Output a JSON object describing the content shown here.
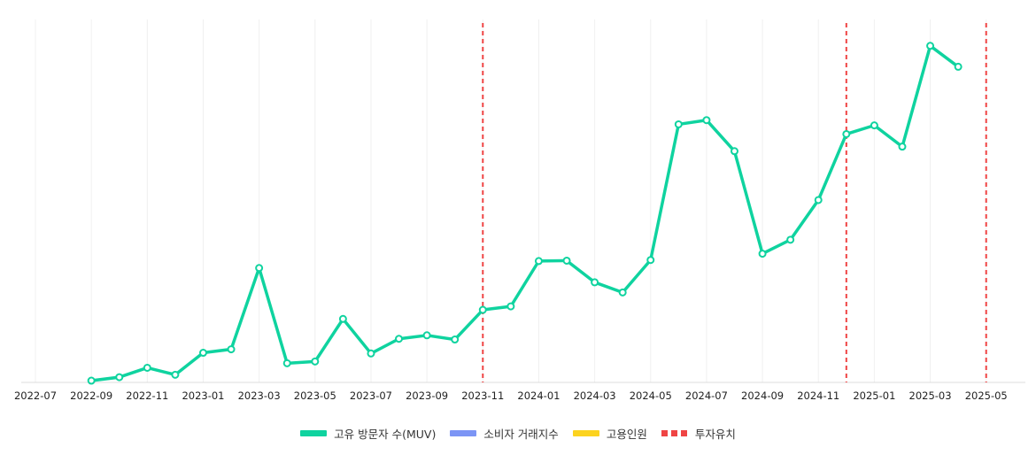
{
  "chart_data": {
    "type": "line",
    "x_ticks": [
      "2022-07",
      "2022-09",
      "2022-11",
      "2023-01",
      "2023-03",
      "2023-05",
      "2023-07",
      "2023-09",
      "2023-11",
      "2024-01",
      "2024-03",
      "2024-05",
      "2024-07",
      "2024-09",
      "2024-11",
      "2025-01",
      "2025-03",
      "2025-05"
    ],
    "series": [
      {
        "name": "고유 방문자 수(MUV)",
        "color": "#0fd39f",
        "x": [
          "2022-09",
          "2022-10",
          "2022-11",
          "2022-12",
          "2023-01",
          "2023-02",
          "2023-03",
          "2023-04",
          "2023-05",
          "2023-06",
          "2023-07",
          "2023-08",
          "2023-09",
          "2023-10",
          "2023-11",
          "2023-12",
          "2024-01",
          "2024-02",
          "2024-03",
          "2024-04",
          "2024-05",
          "2024-06",
          "2024-07",
          "2024-08",
          "2024-09",
          "2024-10",
          "2024-11",
          "2024-12",
          "2025-01",
          "2025-02",
          "2025-03",
          "2025-04"
        ],
        "values": [
          0.5,
          1.5,
          4.2,
          2.2,
          8.5,
          9.5,
          32.8,
          5.5,
          6.0,
          18.2,
          8.3,
          12.5,
          13.5,
          12.3,
          20.8,
          21.8,
          34.8,
          34.9,
          28.7,
          25.8,
          35.1,
          74.0,
          75.2,
          66.3,
          36.9,
          40.9,
          52.3,
          71.2,
          73.7,
          67.6,
          96.5,
          90.5
        ]
      },
      {
        "name": "소비자 거래지수",
        "color": "#7c95f5"
      },
      {
        "name": "고용인원",
        "color": "#fcd31f"
      }
    ],
    "events": {
      "name": "투자유치",
      "color": "#ef4444",
      "dates": [
        "2023-11",
        "2024-12",
        "2025-05"
      ]
    },
    "ylim": [
      0,
      100
    ],
    "grid": "vertical",
    "legend": "bottom-center"
  },
  "legend": {
    "items": [
      {
        "label": "고유 방문자 수(MUV)",
        "color": "#0fd39f"
      },
      {
        "label": "소비자 거래지수",
        "color": "#7c95f5"
      },
      {
        "label": "고용인원",
        "color": "#fcd31f"
      },
      {
        "label": "투자유치",
        "color": "#ef4444"
      }
    ]
  }
}
